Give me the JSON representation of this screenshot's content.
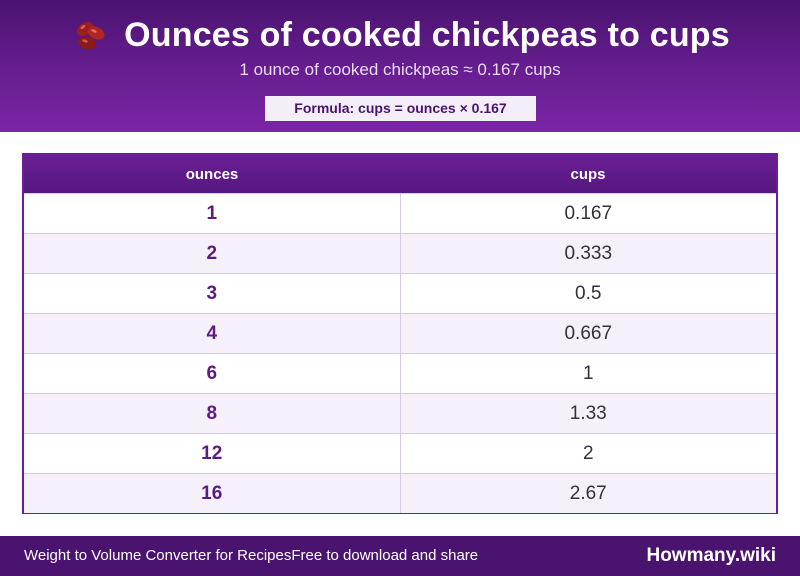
{
  "header": {
    "icon": "beans-icon",
    "title": "Ounces of cooked chickpeas to cups",
    "subtitle": "1 ounce of cooked chickpeas ≈ 0.167 cups",
    "formula": "Formula: cups = ounces × 0.167"
  },
  "table": {
    "columns": [
      "ounces",
      "cups"
    ],
    "rows": [
      {
        "ounces": "1",
        "cups": "0.167"
      },
      {
        "ounces": "2",
        "cups": "0.333"
      },
      {
        "ounces": "3",
        "cups": "0.5"
      },
      {
        "ounces": "4",
        "cups": "0.667"
      },
      {
        "ounces": "6",
        "cups": "1"
      },
      {
        "ounces": "8",
        "cups": "1.33"
      },
      {
        "ounces": "12",
        "cups": "2"
      },
      {
        "ounces": "16",
        "cups": "2.67"
      }
    ]
  },
  "footer": {
    "left_text": "Weight to Volume Converter for RecipesFree to download and share",
    "brand": "Howmany.wiki"
  },
  "colors": {
    "header_bg": "#6a1f94",
    "accent_text": "#5b1a85",
    "row_alt_bg": "#f5f0fa",
    "footer_bg": "#4a1370"
  }
}
